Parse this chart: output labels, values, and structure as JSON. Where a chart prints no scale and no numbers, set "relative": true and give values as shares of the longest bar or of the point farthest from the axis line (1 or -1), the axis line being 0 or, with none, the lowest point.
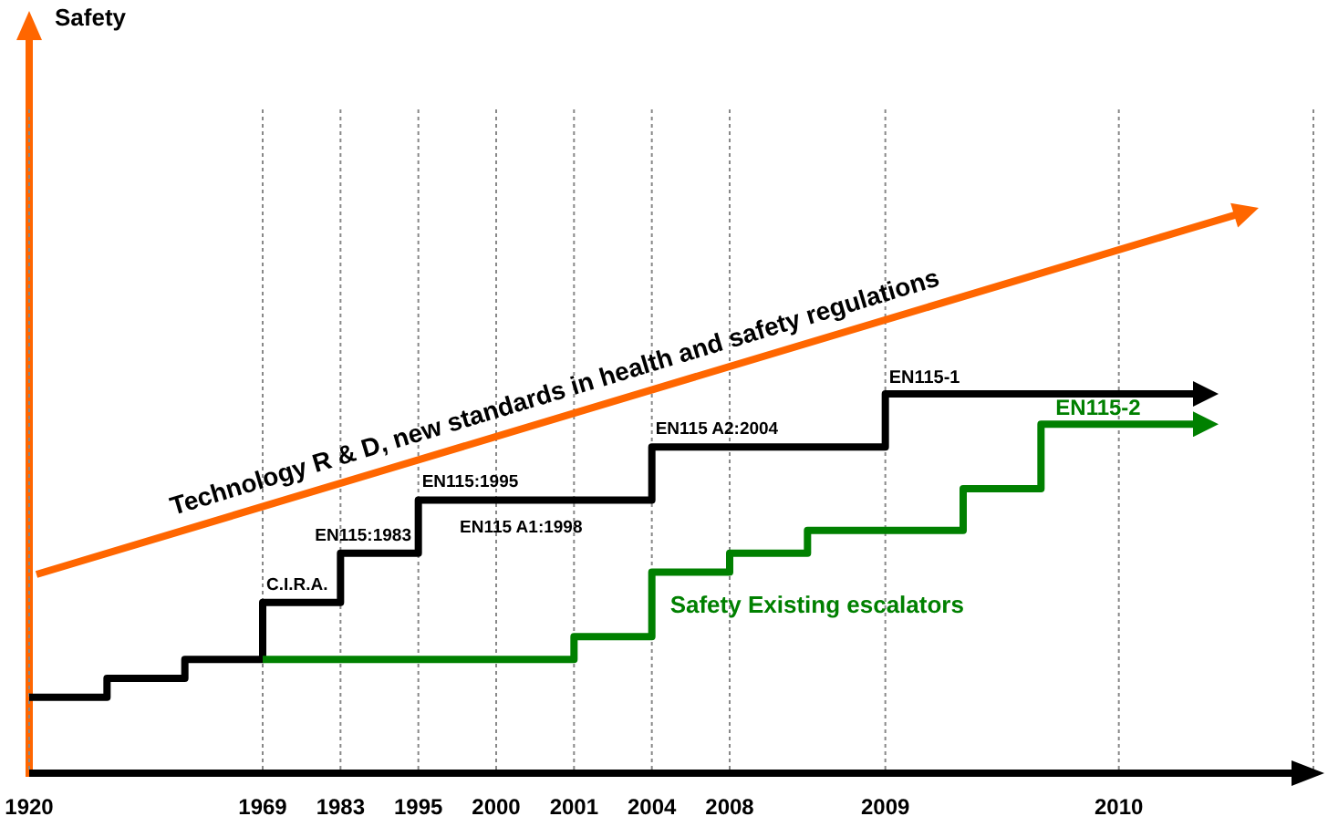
{
  "chart_data": {
    "type": "step",
    "relative": true,
    "grid": "x",
    "categories": [
      "1920",
      null,
      null,
      "1969",
      "1983",
      "1995",
      "2000",
      "2001",
      "2004",
      "2008",
      null,
      "2009",
      null,
      null,
      "2010",
      null
    ],
    "series": [
      {
        "name": "EN115-1",
        "color": "#000000",
        "values": [
          0.2,
          0.25,
          0.3,
          0.45,
          0.58,
          0.72,
          0.72,
          0.72,
          0.86,
          0.86,
          0.86,
          1.0,
          1.0,
          1.0,
          1.0,
          1.0
        ]
      },
      {
        "name": "EN115-2",
        "color": "#008000",
        "values": [
          null,
          null,
          null,
          0.3,
          0.3,
          0.3,
          0.3,
          0.36,
          0.53,
          0.58,
          0.64,
          0.64,
          0.75,
          0.92,
          0.92,
          0.92
        ]
      }
    ],
    "annotations": [
      "Safety",
      "Technology R & D, new standards in health and safety regulations",
      {
        "text": "C.I.R.A.",
        "x": "1969",
        "y": 0.45
      },
      {
        "text": "EN115:1983",
        "x": "1983",
        "y": 0.58
      },
      {
        "text": "EN115:1995",
        "x": "1995",
        "y": 0.72
      },
      {
        "text": "EN115 A1:1998",
        "x": "2000",
        "y": 0.72
      },
      {
        "text": "EN115 A2:2004",
        "x": "2004",
        "y": 0.86
      },
      {
        "text": "Safety Existing escalators",
        "x": "2004",
        "y": 0.53
      }
    ]
  }
}
